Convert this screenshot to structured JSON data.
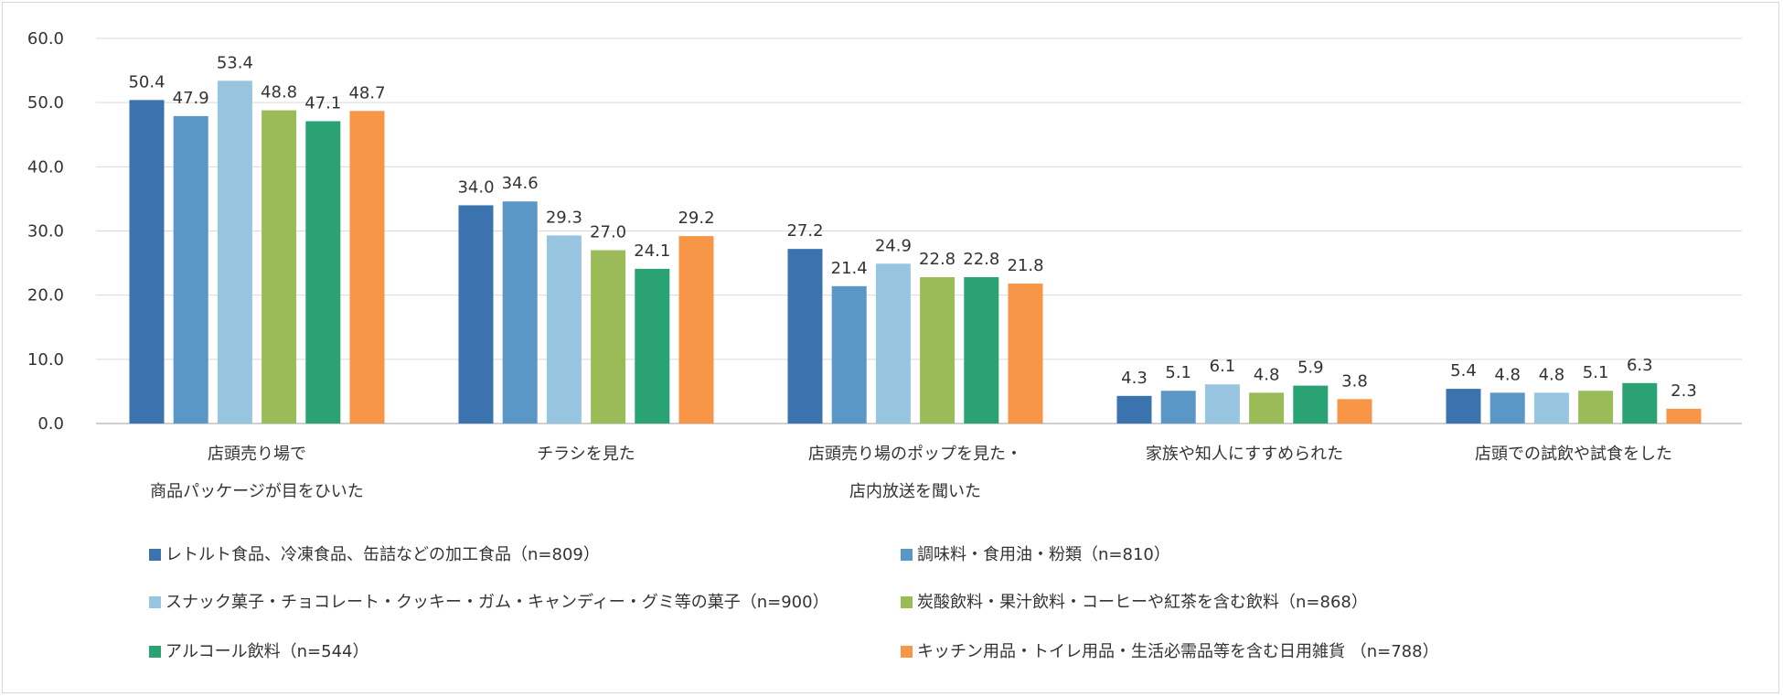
{
  "chart_data": {
    "type": "bar",
    "ylim": [
      0,
      60
    ],
    "yticks": [
      "0.0",
      "10.0",
      "20.0",
      "30.0",
      "40.0",
      "50.0",
      "60.0"
    ],
    "grid": true,
    "legend_position": "bottom",
    "categories": [
      [
        "店頭売り場で",
        "商品パッケージが目をひいた"
      ],
      [
        "チラシを見た"
      ],
      [
        "店頭売り場のポップを見た・",
        "店内放送を聞いた"
      ],
      [
        "家族や知人にすすめられた"
      ],
      [
        "店頭での試飲や試食をした"
      ]
    ],
    "series": [
      {
        "name": "レトルト食品、冷凍食品、缶詰などの加工食品（n=809）",
        "color": "#3a73ad",
        "values": [
          50.4,
          34.0,
          27.2,
          4.3,
          5.4
        ]
      },
      {
        "name": "調味料・食用油・粉類（n=810）",
        "color": "#5b97c6",
        "values": [
          47.9,
          34.6,
          21.4,
          5.1,
          4.8
        ]
      },
      {
        "name": "スナック菓子・チョコレート・クッキー・ガム・キャンディー・グミ等の菓子（n=900）",
        "color": "#97c5e0",
        "values": [
          53.4,
          29.3,
          24.9,
          6.1,
          4.8
        ]
      },
      {
        "name": "炭酸飲料・果汁飲料・コーヒーや紅茶を含む飲料（n=868）",
        "color": "#9bbb59",
        "values": [
          48.8,
          27.0,
          22.8,
          4.8,
          5.1
        ]
      },
      {
        "name": "アルコール飲料（n=544）",
        "color": "#2aa273",
        "values": [
          47.1,
          24.1,
          22.8,
          5.9,
          6.3
        ]
      },
      {
        "name": "キッチン用品・トイレ用品・生活必需品等を含む日用雑貨 （n=788）",
        "color": "#f79646",
        "values": [
          48.7,
          29.2,
          21.8,
          3.8,
          2.3
        ]
      }
    ]
  }
}
